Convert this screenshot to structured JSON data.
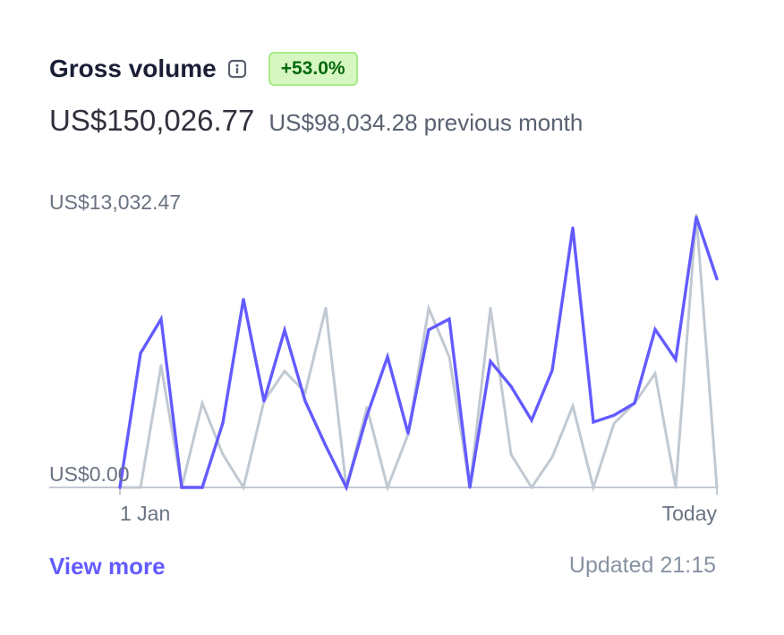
{
  "header": {
    "title": "Gross volume",
    "info_icon": "info-icon",
    "badge": "+53.0%"
  },
  "summary": {
    "current_amount": "US$150,026.77",
    "previous_amount": "US$98,034.28",
    "previous_label": "previous month"
  },
  "footer": {
    "link": "View more",
    "updated_label": "Updated",
    "updated_time": "21:15"
  },
  "colors": {
    "current": "#635bff",
    "previous": "#c1c9d2",
    "axis": "#c1c9d2",
    "badge_bg": "#d7f7c2",
    "badge_text": "#05690d"
  },
  "chart_data": {
    "type": "line",
    "y_top_label": "US$13,032.47",
    "y_bottom_label": "US$0.00",
    "x_start_label": "1 Jan",
    "x_end_label": "Today",
    "ylim": [
      0,
      13032.47
    ],
    "grid": false,
    "series": [
      {
        "key": "current",
        "values": [
          0,
          6450,
          8100,
          0,
          0,
          3100,
          9050,
          4150,
          7560,
          4150,
          2000,
          0,
          3450,
          6280,
          2600,
          7580,
          8100,
          0,
          6060,
          4860,
          3230,
          5630,
          12480,
          3140,
          3470,
          4050,
          7600,
          6150,
          13000,
          10030
        ]
      },
      {
        "key": "previous",
        "values": [
          0,
          0,
          5860,
          0,
          4050,
          1590,
          0,
          4150,
          5590,
          4570,
          8620,
          0,
          3850,
          0,
          2550,
          8620,
          6280,
          0,
          8620,
          1590,
          0,
          1460,
          3920,
          0,
          3070,
          4050,
          5480,
          0,
          13100,
          0
        ]
      }
    ]
  }
}
